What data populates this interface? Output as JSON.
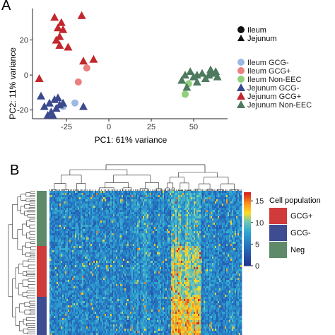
{
  "chart_data": [
    {
      "type": "scatter",
      "panel_label": "A",
      "xlabel": "PC1: 61% variance",
      "ylabel": "PC2: 11% variance",
      "xticks": [
        "-25",
        "0",
        "25",
        "50"
      ],
      "yticks": [
        "20",
        "0",
        "-20"
      ],
      "xlim": [
        -45,
        70
      ],
      "ylim": [
        -25,
        38
      ],
      "shape_legend": [
        {
          "label": "Ileum",
          "shape": "circle"
        },
        {
          "label": "Jejunum",
          "shape": "triangle"
        }
      ],
      "series": [
        {
          "name": "Ileum GCG-",
          "color": "#9bb9e3",
          "shape": "circle",
          "points": [
            [
              -27,
              -18
            ],
            [
              -20,
              -16
            ]
          ]
        },
        {
          "name": "Ileum GCG+",
          "color": "#ec7f7f",
          "shape": "circle",
          "points": [
            [
              -18,
              -4
            ],
            [
              -13,
              4
            ]
          ]
        },
        {
          "name": "Ileum Non-EEC",
          "color": "#8fd07a",
          "shape": "circle",
          "points": [
            [
              45,
              -11
            ],
            [
              47,
              -5
            ]
          ]
        },
        {
          "name": "Jejunum GCG-",
          "color": "#3b4a8c",
          "shape": "triangle",
          "points": [
            [
              -40,
              -12
            ],
            [
              -35,
              -16
            ],
            [
              -32,
              -14
            ],
            [
              -30,
              -13
            ],
            [
              -38,
              -18
            ],
            [
              -34,
              -21
            ],
            [
              -31,
              -19
            ],
            [
              -36,
              -23
            ],
            [
              -33,
              -23
            ],
            [
              -29,
              -17
            ],
            [
              -15,
              -18
            ],
            [
              -27,
              -16
            ]
          ]
        },
        {
          "name": "Jejunum GCG+",
          "color": "#c1272d",
          "shape": "triangle",
          "points": [
            [
              -32,
              33
            ],
            [
              -28,
              30
            ],
            [
              -30,
              27
            ],
            [
              -27,
              26
            ],
            [
              -29,
              22
            ],
            [
              -31,
              20
            ],
            [
              -29,
              17
            ],
            [
              -24,
              16
            ],
            [
              -16,
              34
            ],
            [
              -9,
              9
            ],
            [
              -15,
              8
            ],
            [
              -41,
              -2
            ]
          ]
        },
        {
          "name": "Jejunum Non-EEC",
          "color": "#4e7a5f",
          "shape": "triangle",
          "points": [
            [
              43,
              -3
            ],
            [
              45,
              0
            ],
            [
              46,
              -7
            ],
            [
              48,
              2
            ],
            [
              50,
              -1
            ],
            [
              52,
              0
            ],
            [
              55,
              1
            ],
            [
              57,
              -2
            ],
            [
              59,
              0
            ],
            [
              60,
              3
            ],
            [
              61,
              1
            ],
            [
              63,
              2
            ],
            [
              64,
              -1
            ],
            [
              52,
              -4
            ]
          ]
        }
      ]
    },
    {
      "type": "heatmap",
      "panel_label": "B",
      "colorbar_ticks": [
        "15",
        "10",
        "5",
        "0"
      ],
      "colorbar_range": [
        0,
        17
      ],
      "row_annotation_title": "Cell population",
      "row_groups": [
        {
          "label": "GCG+",
          "color": "#d03a3a"
        },
        {
          "label": "GCG-",
          "color": "#3e4c91"
        },
        {
          "label": "Neg",
          "color": "#5e8a6a"
        }
      ]
    }
  ]
}
